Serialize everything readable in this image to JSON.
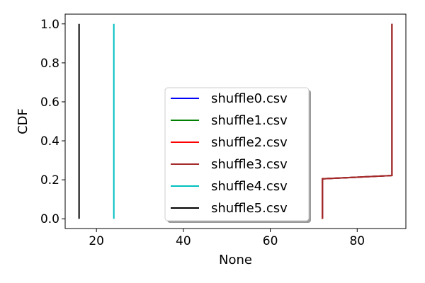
{
  "chart_data": {
    "type": "line",
    "xlabel": "None",
    "ylabel": "CDF",
    "xlim": [
      12.8,
      91.2
    ],
    "ylim": [
      -0.05,
      1.05
    ],
    "xticks": [
      20,
      40,
      60,
      80
    ],
    "yticks": [
      0.0,
      0.2,
      0.4,
      0.6,
      0.8,
      1.0
    ],
    "grid": false,
    "legend_placement": "center",
    "series": [
      {
        "name": "shuffle0.csv",
        "color": "#0000ff",
        "x": [
          72,
          72,
          88,
          88
        ],
        "y": [
          0.0,
          0.205,
          0.222,
          1.0
        ]
      },
      {
        "name": "shuffle1.csv",
        "color": "#008000",
        "x": [
          72,
          72,
          88,
          88
        ],
        "y": [
          0.0,
          0.205,
          0.222,
          1.0
        ]
      },
      {
        "name": "shuffle2.csv",
        "color": "#ff0000",
        "x": [
          72,
          72,
          88,
          88
        ],
        "y": [
          0.0,
          0.205,
          0.222,
          1.0
        ]
      },
      {
        "name": "shuffle3.csv",
        "color": "#a52a2a",
        "x": [
          72,
          72,
          88,
          88
        ],
        "y": [
          0.0,
          0.205,
          0.222,
          1.0
        ]
      },
      {
        "name": "shuffle4.csv",
        "color": "#00bfbf",
        "x": [
          24,
          24
        ],
        "y": [
          0.0,
          1.0
        ]
      },
      {
        "name": "shuffle5.csv",
        "color": "#000000",
        "x": [
          16,
          16
        ],
        "y": [
          0.0,
          1.0
        ]
      }
    ]
  }
}
